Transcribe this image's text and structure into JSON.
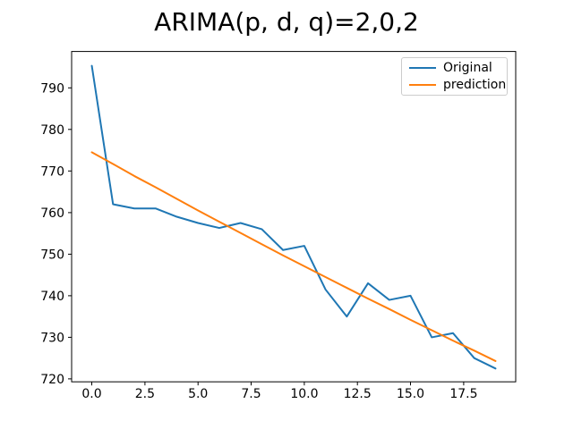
{
  "title": "ARIMA(p, d, q)=2,0,2",
  "colors": {
    "original_line": "#1f77b4",
    "prediction_line": "#ff7f0e",
    "axis": "#000000",
    "legend_border": "#cccccc",
    "background": "#ffffff"
  },
  "legend": {
    "position": "upper right",
    "items": [
      {
        "label": "Original",
        "color": "#1f77b4"
      },
      {
        "label": "prediction",
        "color": "#ff7f0e"
      }
    ]
  },
  "chart_data": {
    "type": "line",
    "title": "ARIMA(p, d, q)=2,0,2",
    "xlabel": "",
    "ylabel": "",
    "grid": false,
    "legend_position": "upper right",
    "xlim": [
      -0.95,
      19.95
    ],
    "ylim": [
      719.3,
      798.75
    ],
    "xticks": [
      0.0,
      2.5,
      5.0,
      7.5,
      10.0,
      12.5,
      15.0,
      17.5
    ],
    "xtick_labels": [
      "0.0",
      "2.5",
      "5.0",
      "7.5",
      "10.0",
      "12.5",
      "15.0",
      "17.5"
    ],
    "yticks": [
      720,
      730,
      740,
      750,
      760,
      770,
      780,
      790
    ],
    "ytick_labels": [
      "720",
      "730",
      "740",
      "750",
      "760",
      "770",
      "780",
      "790"
    ],
    "x": [
      0,
      1,
      2,
      3,
      4,
      5,
      6,
      7,
      8,
      9,
      10,
      11,
      12,
      13,
      14,
      15,
      16,
      17,
      18,
      19
    ],
    "series": [
      {
        "name": "Original",
        "color": "#1f77b4",
        "values": [
          795.3,
          762,
          761,
          761,
          759,
          757.5,
          756.3,
          757.5,
          756,
          751,
          752,
          741.5,
          735,
          743,
          739,
          740,
          730,
          731,
          725,
          722.5
        ]
      },
      {
        "name": "prediction",
        "color": "#ff7f0e",
        "values": [
          774.5,
          771.7,
          768.8,
          766.1,
          763.3,
          760.5,
          757.8,
          755.1,
          752.4,
          749.7,
          747.1,
          744.5,
          741.9,
          739.3,
          736.8,
          734.2,
          731.7,
          729.2,
          726.8,
          724.3
        ]
      }
    ]
  }
}
